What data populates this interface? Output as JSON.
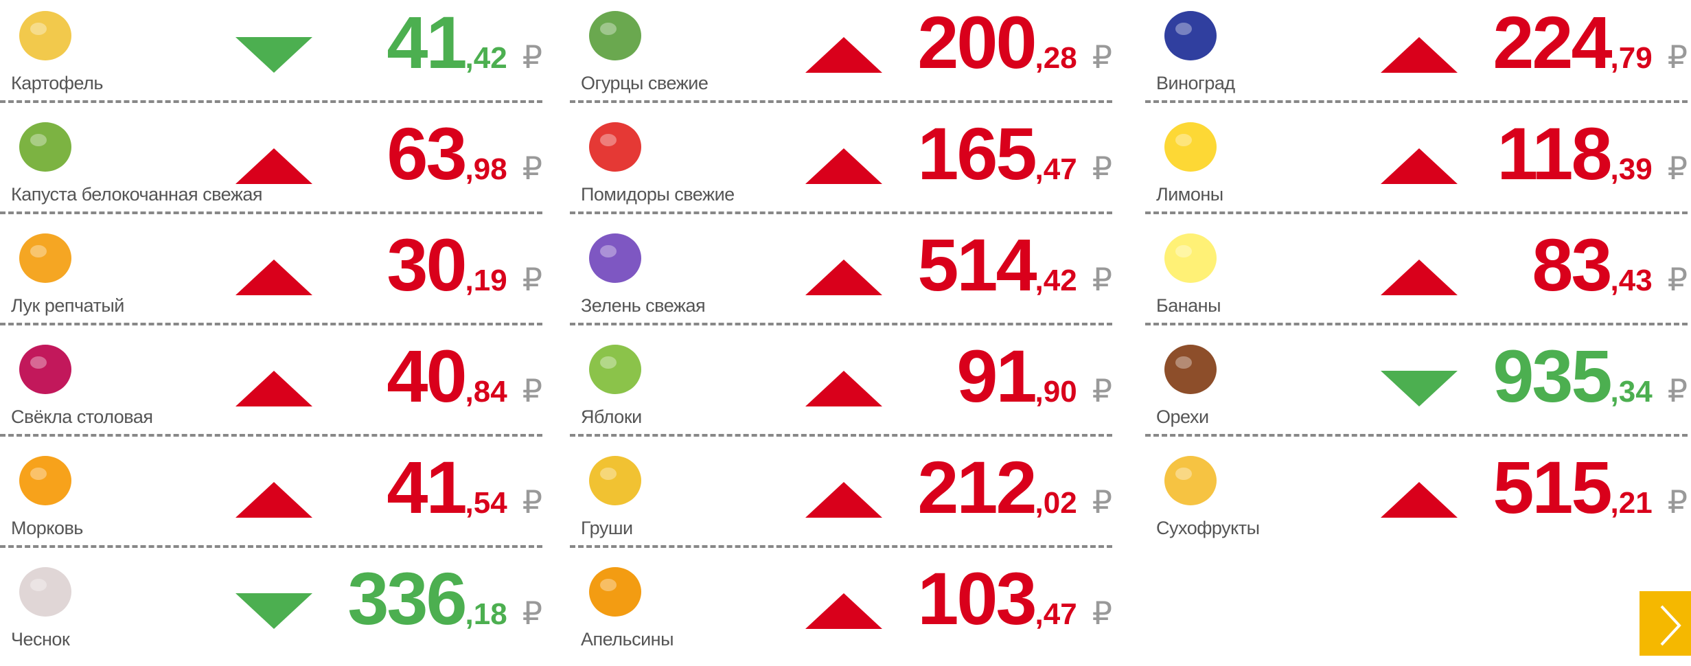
{
  "currency": "₽",
  "columns": [
    [
      {
        "name": "Картофель",
        "price": "41",
        "kopecks": ",42",
        "trend": "down"
      },
      {
        "name": "Капуста белокочанная свежая",
        "price": "63",
        "kopecks": ",98",
        "trend": "up"
      },
      {
        "name": "Лук репчатый",
        "price": "30",
        "kopecks": ",19",
        "trend": "up"
      },
      {
        "name": "Свёкла столовая",
        "price": "40",
        "kopecks": ",84",
        "trend": "up"
      },
      {
        "name": "Морковь",
        "price": "41",
        "kopecks": ",54",
        "trend": "up"
      },
      {
        "name": "Чеснок",
        "price": "336",
        "kopecks": ",18",
        "trend": "down"
      }
    ],
    [
      {
        "name": "Огурцы свежие",
        "price": "200",
        "kopecks": ",28",
        "trend": "up"
      },
      {
        "name": "Помидоры свежие",
        "price": "165",
        "kopecks": ",47",
        "trend": "up"
      },
      {
        "name": "Зелень свежая",
        "price": "514",
        "kopecks": ",42",
        "trend": "up"
      },
      {
        "name": "Яблоки",
        "price": "91",
        "kopecks": ",90",
        "trend": "up"
      },
      {
        "name": "Груши",
        "price": "212",
        "kopecks": ",02",
        "trend": "up"
      },
      {
        "name": "Апельсины",
        "price": "103",
        "kopecks": ",47",
        "trend": "up"
      }
    ],
    [
      {
        "name": "Виноград",
        "price": "224",
        "kopecks": ",79",
        "trend": "up"
      },
      {
        "name": "Лимоны",
        "price": "118",
        "kopecks": ",39",
        "trend": "up"
      },
      {
        "name": "Бананы",
        "price": "83",
        "kopecks": ",43",
        "trend": "up"
      },
      {
        "name": "Орехи",
        "price": "935",
        "kopecks": ",34",
        "trend": "down"
      },
      {
        "name": "Сухофрукты",
        "price": "515",
        "kopecks": ",21",
        "trend": "up"
      }
    ]
  ]
}
